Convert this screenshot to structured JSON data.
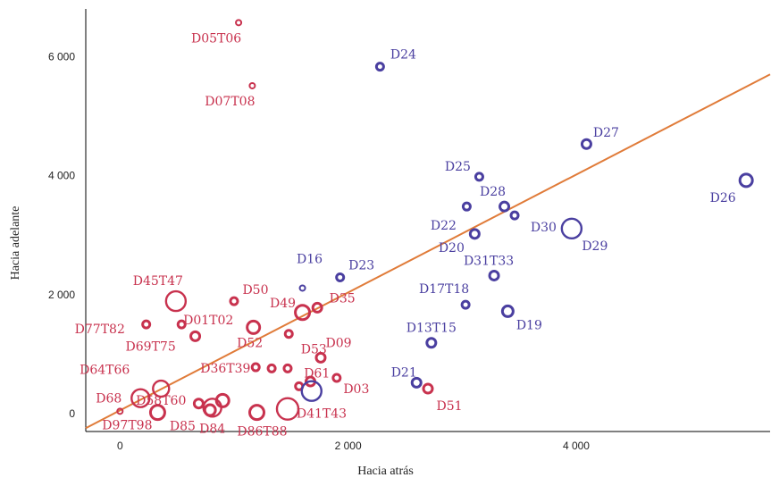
{
  "chart_data": {
    "type": "scatter",
    "title": "",
    "xlabel": "Hacia atrás",
    "ylabel": "Hacia adelante",
    "xlim": [
      -300,
      5700
    ],
    "ylim": [
      -300,
      6800
    ],
    "xticks": [
      0,
      2000,
      4000
    ],
    "xtick_labels": [
      "0",
      "2 000",
      "4 000"
    ],
    "yticks": [
      0,
      2000,
      4000,
      6000
    ],
    "ytick_labels": [
      "0",
      "2 000",
      "4 000",
      "6 000"
    ],
    "grid": false,
    "trend_line": {
      "x": [
        -300,
        5700
      ],
      "y": [
        -243,
        5701
      ],
      "color": "#e07b39"
    },
    "colors": {
      "red_group": "#c8324e",
      "blue_group": "#4a3fa0"
    },
    "series": [
      {
        "color": "#c8324e",
        "points": [
          {
            "label": "D05T06",
            "x": 1040,
            "y": 6570,
            "size": 3
          },
          {
            "label": "D07T08",
            "x": 1160,
            "y": 5510,
            "size": 3
          },
          {
            "label": "D45T47",
            "x": 490,
            "y": 1890,
            "size": 11
          },
          {
            "label": "D50",
            "x": 1000,
            "y": 1890,
            "size": 4
          },
          {
            "label": "D01T02",
            "x": 540,
            "y": 1500,
            "size": 4
          },
          {
            "label": "D77T82",
            "x": 230,
            "y": 1500,
            "size": 4
          },
          {
            "label": "D69T75",
            "x": 660,
            "y": 1300,
            "size": 5
          },
          {
            "label": "D52",
            "x": 1170,
            "y": 1450,
            "size": 7
          },
          {
            "label": "D49",
            "x": 1600,
            "y": 1700,
            "size": 8
          },
          {
            "label": "D35",
            "x": 1730,
            "y": 1780,
            "size": 5
          },
          {
            "label": "D09",
            "x": 1760,
            "y": 940,
            "size": 5
          },
          {
            "label": "D53",
            "x": 1480,
            "y": 1340,
            "size": 4
          },
          {
            "label": "D61",
            "x": 1570,
            "y": 460,
            "size": 4
          },
          {
            "label": "D36T39",
            "x": 1190,
            "y": 780,
            "size": 4
          },
          {
            "label": "D64T66",
            "x": 1330,
            "y": 760,
            "size": 4
          },
          {
            "label": "",
            "x": 1470,
            "y": 760,
            "size": 4
          },
          {
            "label": "D03",
            "x": 1900,
            "y": 600,
            "size": 4
          },
          {
            "label": "D58T60",
            "x": 360,
            "y": 420,
            "size": 9
          },
          {
            "label": "D68",
            "x": 180,
            "y": 260,
            "size": 10
          },
          {
            "label": "",
            "x": 900,
            "y": 220,
            "size": 7
          },
          {
            "label": "",
            "x": 690,
            "y": 170,
            "size": 5
          },
          {
            "label": "D97T98",
            "x": 0,
            "y": 40,
            "size": 3
          },
          {
            "label": "D85",
            "x": 330,
            "y": 20,
            "size": 8
          },
          {
            "label": "D84",
            "x": 810,
            "y": 100,
            "size": 10
          },
          {
            "label": "",
            "x": 790,
            "y": 60,
            "size": 6
          },
          {
            "label": "D86T88",
            "x": 1200,
            "y": 20,
            "size": 8
          },
          {
            "label": "D41T43",
            "x": 1470,
            "y": 80,
            "size": 12
          },
          {
            "label": "D51",
            "x": 2700,
            "y": 420,
            "size": 5
          },
          {
            "label": "",
            "x": 1670,
            "y": 540,
            "size": 5
          }
        ]
      },
      {
        "color": "#4a3fa0",
        "points": [
          {
            "label": "D24",
            "x": 2280,
            "y": 5830,
            "size": 4
          },
          {
            "label": "D27",
            "x": 4090,
            "y": 4530,
            "size": 5
          },
          {
            "label": "D26",
            "x": 5490,
            "y": 3920,
            "size": 7
          },
          {
            "label": "D25",
            "x": 3150,
            "y": 3980,
            "size": 4
          },
          {
            "label": "D28",
            "x": 3370,
            "y": 3480,
            "size": 5
          },
          {
            "label": "D22",
            "x": 3040,
            "y": 3480,
            "size": 4
          },
          {
            "label": "",
            "x": 3460,
            "y": 3330,
            "size": 4
          },
          {
            "label": "D30",
            "x": 3960,
            "y": 3110,
            "size": 11
          },
          {
            "label": "D29",
            "x": 3960,
            "y": 3110,
            "size": 0
          },
          {
            "label": "D20",
            "x": 3110,
            "y": 3020,
            "size": 5
          },
          {
            "label": "D31T33",
            "x": 3280,
            "y": 2320,
            "size": 5
          },
          {
            "label": "D23",
            "x": 1930,
            "y": 2290,
            "size": 4
          },
          {
            "label": "D16",
            "x": 1600,
            "y": 2110,
            "size": 3
          },
          {
            "label": "D17T18",
            "x": 3030,
            "y": 1830,
            "size": 4
          },
          {
            "label": "D19",
            "x": 3400,
            "y": 1720,
            "size": 6
          },
          {
            "label": "D13T15",
            "x": 2730,
            "y": 1190,
            "size": 5
          },
          {
            "label": "D21",
            "x": 2600,
            "y": 520,
            "size": 5
          },
          {
            "label": "",
            "x": 1680,
            "y": 380,
            "size": 11
          }
        ]
      }
    ]
  }
}
